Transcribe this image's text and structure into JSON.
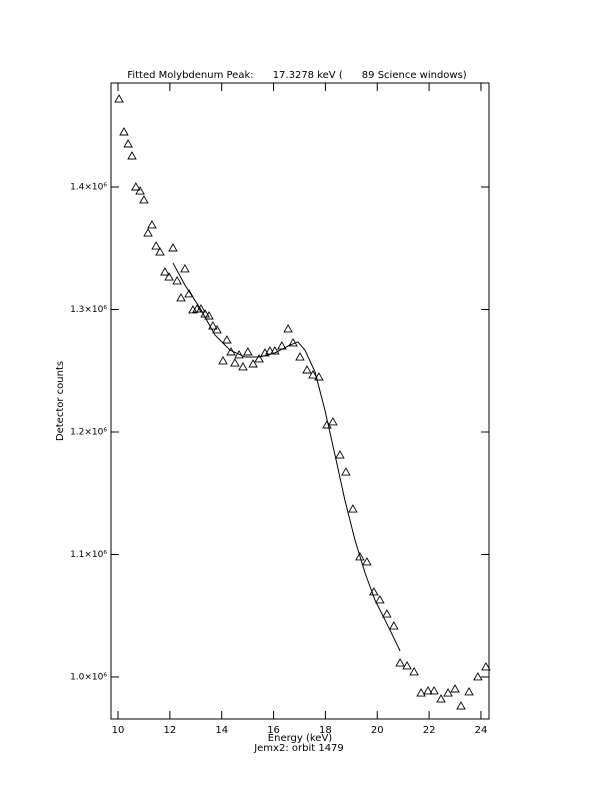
{
  "chart_data": {
    "type": "scatter",
    "title": "Fitted Molybdenum Peak:      17.3278 keV (      89 Science windows)",
    "x_label": "Energy (keV)",
    "subtitle": "Jemx2: orbit 1479",
    "y_label": "Detector counts",
    "xlim": [
      9.73,
      24.31
    ],
    "ylim": [
      965700,
      1484900
    ],
    "xticks": [
      10,
      12,
      14,
      16,
      18,
      20,
      22,
      24
    ],
    "yticks": [
      {
        "value": 1000000,
        "label": "1.0×10⁶"
      },
      {
        "value": 1100000,
        "label": "1.1×10⁶"
      },
      {
        "value": 1200000,
        "label": "1.2×10⁶"
      },
      {
        "value": 1300000,
        "label": "1.3×10⁶"
      },
      {
        "value": 1400000,
        "label": "1.4×10⁶"
      }
    ],
    "series": [
      {
        "style": "triangle",
        "color": "#000000",
        "x": [
          10.04,
          10.23,
          10.39,
          10.54,
          10.69,
          10.85,
          11.0,
          11.16,
          11.31,
          11.47,
          11.62,
          11.81,
          11.97,
          12.12,
          12.28,
          12.43,
          12.58,
          12.74,
          12.89,
          13.05,
          13.2,
          13.36,
          13.51,
          13.66,
          13.82,
          14.05,
          14.2,
          14.36,
          14.51,
          14.67,
          14.82,
          15.01,
          15.21,
          15.44,
          15.67,
          15.86,
          16.05,
          16.32,
          16.56,
          16.75,
          17.02,
          17.29,
          17.52,
          17.75,
          18.06,
          18.29,
          18.56,
          18.79,
          19.06,
          19.33,
          19.6,
          19.87,
          20.1,
          20.37,
          20.64,
          20.88,
          21.15,
          21.42,
          21.69,
          21.96,
          22.19,
          22.46,
          22.73,
          23.0,
          23.23,
          23.54,
          23.88,
          24.19
        ],
        "values": [
          1471800,
          1444900,
          1435100,
          1425300,
          1400000,
          1396700,
          1389400,
          1362400,
          1369000,
          1351800,
          1346900,
          1330600,
          1326500,
          1350200,
          1323300,
          1309400,
          1333100,
          1312700,
          1299600,
          1300400,
          1300400,
          1296300,
          1294700,
          1286500,
          1283300,
          1258000,
          1275100,
          1265300,
          1256300,
          1262900,
          1253100,
          1265300,
          1255500,
          1259600,
          1264500,
          1266100,
          1266100,
          1270200,
          1284100,
          1272700,
          1261200,
          1250600,
          1246500,
          1244900,
          1205700,
          1208200,
          1181200,
          1167300,
          1137100,
          1098000,
          1093900,
          1069400,
          1062900,
          1051400,
          1041600,
          1011400,
          1009000,
          1004100,
          986900,
          988600,
          988600,
          982000,
          986900,
          990200,
          976300,
          987800,
          1000000,
          1008200
        ]
      },
      {
        "style": "line",
        "color": "#000000",
        "x": [
          12.12,
          12.58,
          13.16,
          13.74,
          14.32,
          14.9,
          15.48,
          16.05,
          16.63,
          16.94,
          17.21,
          17.6,
          17.98,
          18.37,
          18.75,
          19.14,
          19.53,
          19.91,
          20.49,
          20.88
        ],
        "values": [
          1338000,
          1320000,
          1301200,
          1279200,
          1266900,
          1261200,
          1261200,
          1264500,
          1271000,
          1273500,
          1266900,
          1249000,
          1218000,
          1181200,
          1144500,
          1111800,
          1084900,
          1062900,
          1038400,
          1021200
        ]
      }
    ]
  }
}
